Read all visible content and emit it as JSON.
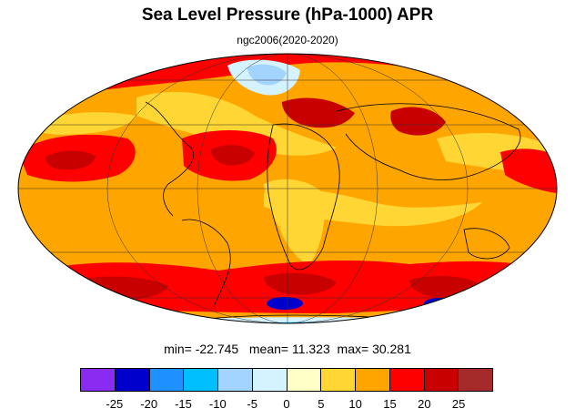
{
  "title": "Sea Level Pressure (hPa-1000) APR",
  "subtitle": "ngc2006(2020-2020)",
  "stats": {
    "min_label": "min=",
    "min": "-22.745",
    "mean_label": "mean=",
    "mean": "11.323",
    "max_label": "max=",
    "max": "30.281"
  },
  "colorbar": {
    "colors": [
      "#8a2bf2",
      "#0000cd",
      "#1e90ff",
      "#00bfff",
      "#a3d3ff",
      "#d5f2ff",
      "#ffffc8",
      "#ffd633",
      "#ffa500",
      "#ff0000",
      "#c80000",
      "#a52a2a"
    ],
    "ticks": [
      "-25",
      "-20",
      "-15",
      "-10",
      "-5",
      "0",
      "5",
      "10",
      "15",
      "20",
      "25"
    ]
  },
  "map": {
    "projection": "mollweide",
    "ocean_base_color": "#ffa500"
  }
}
